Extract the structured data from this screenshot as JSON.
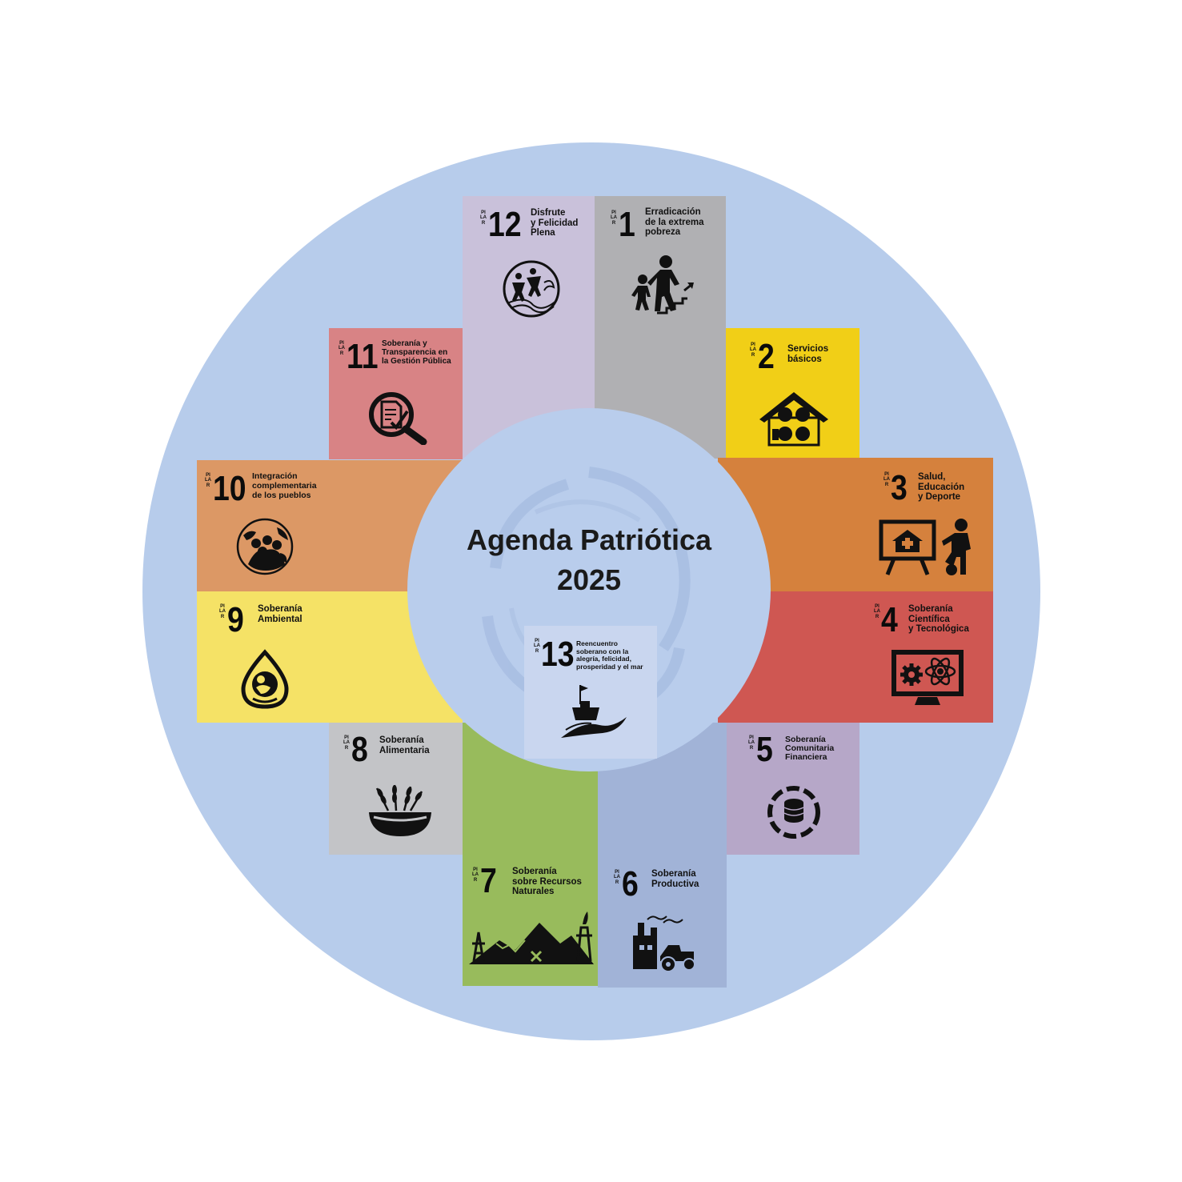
{
  "title": "Agenda Patriótica\n2025",
  "pilar_label": "PILAR",
  "colors": {
    "background_circle": "#b7cceb",
    "center_circle": "#b9cdec"
  },
  "pillars": [
    {
      "number": "1",
      "title": "Erradicación\nde la extrema\npobreza",
      "color": "#b0b0b3",
      "icon": "climbing-stairs-icon"
    },
    {
      "number": "2",
      "title": "Servicios\nbásicos",
      "color": "#f1cf17",
      "icon": "house-services-icon"
    },
    {
      "number": "3",
      "title": "Salud,\nEducación\ny Deporte",
      "color": "#d5813d",
      "icon": "health-education-sport-icon"
    },
    {
      "number": "4",
      "title": "Soberanía\nCientífica\ny Tecnológica",
      "color": "#cf5752",
      "icon": "atom-monitor-icon"
    },
    {
      "number": "5",
      "title": "Soberanía\nComunitaria\nFinanciera",
      "color": "#b6a7c8",
      "icon": "coins-hands-icon"
    },
    {
      "number": "6",
      "title": "Soberanía\nProductiva",
      "color": "#a1b3d7",
      "icon": "factory-tractor-icon"
    },
    {
      "number": "7",
      "title": "Soberanía\nsobre Recursos\nNaturales",
      "color": "#98bb5c",
      "icon": "mountains-mining-icon"
    },
    {
      "number": "8",
      "title": "Soberanía\nAlimentaria",
      "color": "#c3c4c7",
      "icon": "grain-bowl-icon"
    },
    {
      "number": "9",
      "title": "Soberanía\nAmbiental",
      "color": "#f5e266",
      "icon": "mother-earth-drop-icon"
    },
    {
      "number": "10",
      "title": "Integración\ncomplementaria\nde los pueblos",
      "color": "#dc9865",
      "icon": "globe-people-icon"
    },
    {
      "number": "11",
      "title": "Soberanía y\nTransparencia en\nla Gestión Pública",
      "color": "#d88385",
      "icon": "document-search-icon"
    },
    {
      "number": "12",
      "title": "Disfrute\ny Felicidad\nPlena",
      "color": "#c9c1da",
      "icon": "dancing-people-icon"
    },
    {
      "number": "13",
      "title": "Reencuentro\nsoberano con la\nalegría, felicidad,\nprosperidad y el mar",
      "color": "#c9d6ef",
      "icon": "boat-sea-icon"
    }
  ]
}
